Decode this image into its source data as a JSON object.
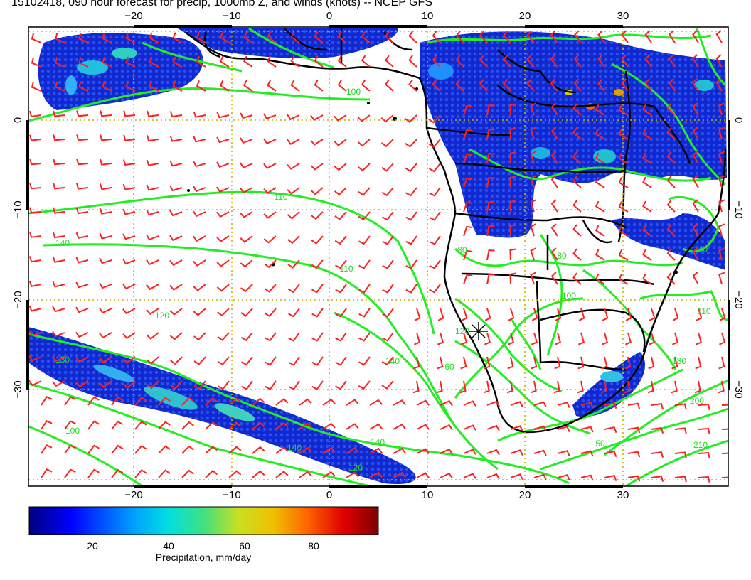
{
  "title": "15102418, 090 hour forecast for precip, 1000mb Z, and winds (knots) -- NCEP GFS",
  "map": {
    "lon_ticks": [
      "−20",
      "−10",
      "0",
      "10",
      "20",
      "30"
    ],
    "lat_ticks": [
      "0",
      "−10",
      "−20",
      "−30"
    ],
    "contour_labels": [
      "100",
      "110",
      "140",
      "110",
      "80",
      "80",
      "100",
      "120",
      "110",
      "140",
      "180",
      "200",
      "210",
      "120",
      "130",
      "140",
      "140",
      "140",
      "100",
      "120",
      "50",
      "60"
    ],
    "colors": {
      "wind_barbs": "#ff2020",
      "contours": "#22ee22",
      "coastline": "#000000",
      "grid": "#c8b400"
    }
  },
  "colorbar": {
    "tick_labels": [
      "20",
      "40",
      "60",
      "80"
    ],
    "label": "Precipitation, mm/day",
    "gradient": [
      "#00007f",
      "#0000ff",
      "#00a0ff",
      "#00e0e0",
      "#40e080",
      "#a0e040",
      "#e0d000",
      "#ff8000",
      "#ff0000",
      "#7f0000"
    ]
  }
}
